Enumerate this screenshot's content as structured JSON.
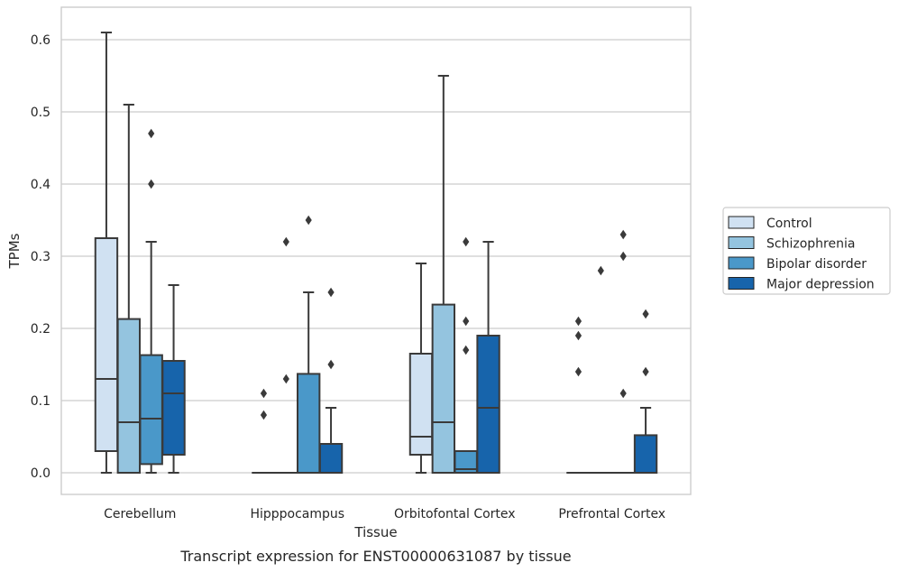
{
  "chart_data": {
    "type": "box",
    "title": "",
    "caption": "Transcript expression for ENST00000631087 by tissue",
    "xlabel": "Tissue",
    "ylabel": "TPMs",
    "ylim": [
      -0.03,
      0.645
    ],
    "yticks": [
      0.0,
      0.1,
      0.2,
      0.3,
      0.4,
      0.5,
      0.6
    ],
    "ytick_labels": [
      "0.0",
      "0.1",
      "0.2",
      "0.3",
      "0.4",
      "0.5",
      "0.6"
    ],
    "grid": true,
    "legend_position": "right",
    "categories": [
      "Cerebellum",
      "Hipppocampus",
      "Orbitofontal Cortex",
      "Prefrontal Cortex"
    ],
    "series": [
      {
        "name": "Control",
        "color": "#d0e1f2",
        "boxes": [
          {
            "whisker_low": 0.0,
            "q1": 0.03,
            "median": 0.13,
            "q3": 0.325,
            "whisker_high": 0.61,
            "outliers": []
          },
          {
            "whisker_low": 0.0,
            "q1": 0.0,
            "median": 0.0,
            "q3": 0.0,
            "whisker_high": 0.0,
            "outliers": [
              0.11,
              0.08
            ]
          },
          {
            "whisker_low": 0.0,
            "q1": 0.025,
            "median": 0.05,
            "q3": 0.165,
            "whisker_high": 0.29,
            "outliers": []
          },
          {
            "whisker_low": 0.0,
            "q1": 0.0,
            "median": 0.0,
            "q3": 0.0,
            "whisker_high": 0.0,
            "outliers": [
              0.21,
              0.19,
              0.14
            ]
          }
        ]
      },
      {
        "name": "Schizophrenia",
        "color": "#94c4df",
        "boxes": [
          {
            "whisker_low": 0.0,
            "q1": 0.0,
            "median": 0.07,
            "q3": 0.213,
            "whisker_high": 0.51,
            "outliers": []
          },
          {
            "whisker_low": 0.0,
            "q1": 0.0,
            "median": 0.0,
            "q3": 0.0,
            "whisker_high": 0.0,
            "outliers": [
              0.32,
              0.13
            ]
          },
          {
            "whisker_low": 0.0,
            "q1": 0.0,
            "median": 0.07,
            "q3": 0.233,
            "whisker_high": 0.55,
            "outliers": []
          },
          {
            "whisker_low": 0.0,
            "q1": 0.0,
            "median": 0.0,
            "q3": 0.0,
            "whisker_high": 0.0,
            "outliers": [
              0.28
            ]
          }
        ]
      },
      {
        "name": "Bipolar disorder",
        "color": "#4a98c9",
        "boxes": [
          {
            "whisker_low": 0.0,
            "q1": 0.012,
            "median": 0.075,
            "q3": 0.163,
            "whisker_high": 0.32,
            "outliers": [
              0.47,
              0.4
            ]
          },
          {
            "whisker_low": 0.0,
            "q1": 0.0,
            "median": 0.0,
            "q3": 0.137,
            "whisker_high": 0.25,
            "outliers": [
              0.35
            ]
          },
          {
            "whisker_low": 0.0,
            "q1": 0.0,
            "median": 0.005,
            "q3": 0.03,
            "whisker_high": 0.03,
            "outliers": [
              0.32,
              0.21,
              0.17
            ]
          },
          {
            "whisker_low": 0.0,
            "q1": 0.0,
            "median": 0.0,
            "q3": 0.0,
            "whisker_high": 0.0,
            "outliers": [
              0.33,
              0.3,
              0.11
            ]
          }
        ]
      },
      {
        "name": "Major depression",
        "color": "#1764ab",
        "boxes": [
          {
            "whisker_low": 0.0,
            "q1": 0.025,
            "median": 0.11,
            "q3": 0.155,
            "whisker_high": 0.26,
            "outliers": []
          },
          {
            "whisker_low": 0.0,
            "q1": 0.0,
            "median": 0.0,
            "q3": 0.04,
            "whisker_high": 0.09,
            "outliers": [
              0.25,
              0.15
            ]
          },
          {
            "whisker_low": 0.0,
            "q1": 0.0,
            "median": 0.09,
            "q3": 0.19,
            "whisker_high": 0.32,
            "outliers": []
          },
          {
            "whisker_low": 0.0,
            "q1": 0.0,
            "median": 0.0,
            "q3": 0.052,
            "whisker_high": 0.09,
            "outliers": [
              0.22,
              0.14
            ]
          }
        ]
      }
    ]
  },
  "colors": {
    "grid": "#cccccc",
    "frame": "#cccccc",
    "edge": "#3a3a3a"
  }
}
